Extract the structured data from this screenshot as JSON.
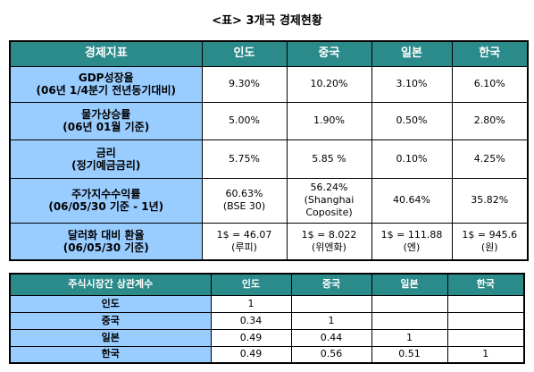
{
  "title": "<표> 3개국 경제현황",
  "economy_table": {
    "header": [
      "경제지표",
      "인도",
      "중국",
      "일본",
      "한국"
    ],
    "rows": [
      {
        "label": [
          "GDP성장율",
          "(06년 1/4분기 전년동기대비)"
        ],
        "cells": [
          [
            "9.30%"
          ],
          [
            "10.20%"
          ],
          [
            "3.10%"
          ],
          [
            "6.10%"
          ]
        ]
      },
      {
        "label": [
          "물가상승률",
          "(06년 01월 기준)"
        ],
        "cells": [
          [
            "5.00%"
          ],
          [
            "1.90%"
          ],
          [
            "0.50%"
          ],
          [
            "2.80%"
          ]
        ]
      },
      {
        "label": [
          "금리",
          "(정기예금금리)"
        ],
        "cells": [
          [
            "5.75%"
          ],
          [
            "5.85 %"
          ],
          [
            "0.10%"
          ],
          [
            "4.25%"
          ]
        ]
      },
      {
        "label": [
          "주가지수수익률",
          "(06/05/30 기준 - 1년)"
        ],
        "cells": [
          [
            "60.63%",
            "(BSE 30)"
          ],
          [
            "56.24%",
            "(Shanghai",
            "Coposite)"
          ],
          [
            "40.64%"
          ],
          [
            "35.82%"
          ]
        ]
      },
      {
        "label": [
          "달러화 대비 환율",
          "(06/05/30 기준)"
        ],
        "cells": [
          [
            "1$ = 46.07",
            "(루피)"
          ],
          [
            "1$ = 8.022",
            "(위엔화)"
          ],
          [
            "1$ = 111.88",
            "(엔)"
          ],
          [
            "1$ = 945.6",
            "(원)"
          ]
        ]
      }
    ]
  },
  "correlation_table": {
    "header": [
      "주식시장간 상관계수",
      "인도",
      "중국",
      "일본",
      "한국"
    ],
    "rows": [
      {
        "label": "인도",
        "values": [
          "1"
        ]
      },
      {
        "label": "중국",
        "values": [
          "0.34",
          "1"
        ]
      },
      {
        "label": "일본",
        "values": [
          "0.49",
          "0.44",
          "1"
        ]
      },
      {
        "label": "한국",
        "values": [
          "0.49",
          "0.56",
          "0.51",
          "1"
        ]
      }
    ]
  }
}
